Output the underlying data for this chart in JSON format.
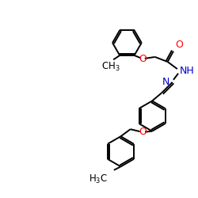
{
  "bg_color": "#ffffff",
  "bond_color": "#000000",
  "O_color": "#ff0000",
  "N_color": "#0000cd",
  "line_width": 1.4,
  "font_size": 8.5,
  "figsize": [
    2.5,
    2.5
  ],
  "dpi": 100,
  "xlim": [
    0,
    10
  ],
  "ylim": [
    0,
    10
  ]
}
